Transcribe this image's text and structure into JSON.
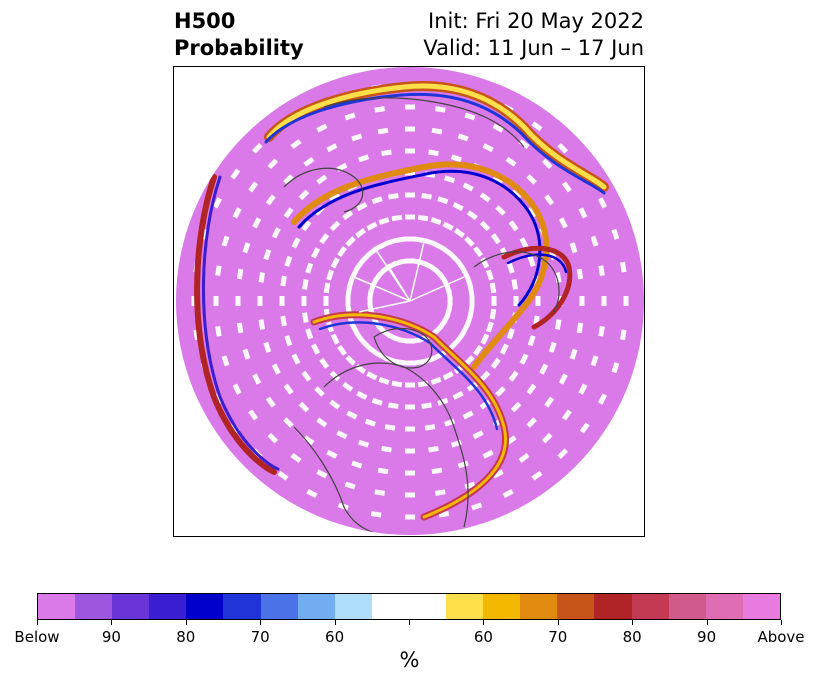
{
  "title": {
    "left_line1": "H500",
    "left_line2": "Probability",
    "right_line1": "Init: Fri 20 May 2022",
    "right_line2": "Valid: 11 Jun – 17 Jun"
  },
  "map": {
    "projection": "north-polar-stereographic",
    "background": "#ffffff",
    "coastline_color": "#444444"
  },
  "colorbar": {
    "colors": [
      "#d97ae8",
      "#9e55e0",
      "#6a35d8",
      "#3a1ed2",
      "#0000cc",
      "#2035d8",
      "#4b72e6",
      "#72adf1",
      "#aedcfb",
      "#ffffff",
      "#ffffff",
      "#fde049",
      "#f4b800",
      "#e08a10",
      "#c75418",
      "#b02425",
      "#c33a52",
      "#d05a8a",
      "#df6db4",
      "#e87ae0"
    ],
    "tick_labels": [
      "Below",
      "90",
      "80",
      "70",
      "60",
      "",
      "60",
      "70",
      "80",
      "90",
      "Above"
    ],
    "unit_label": "%"
  }
}
